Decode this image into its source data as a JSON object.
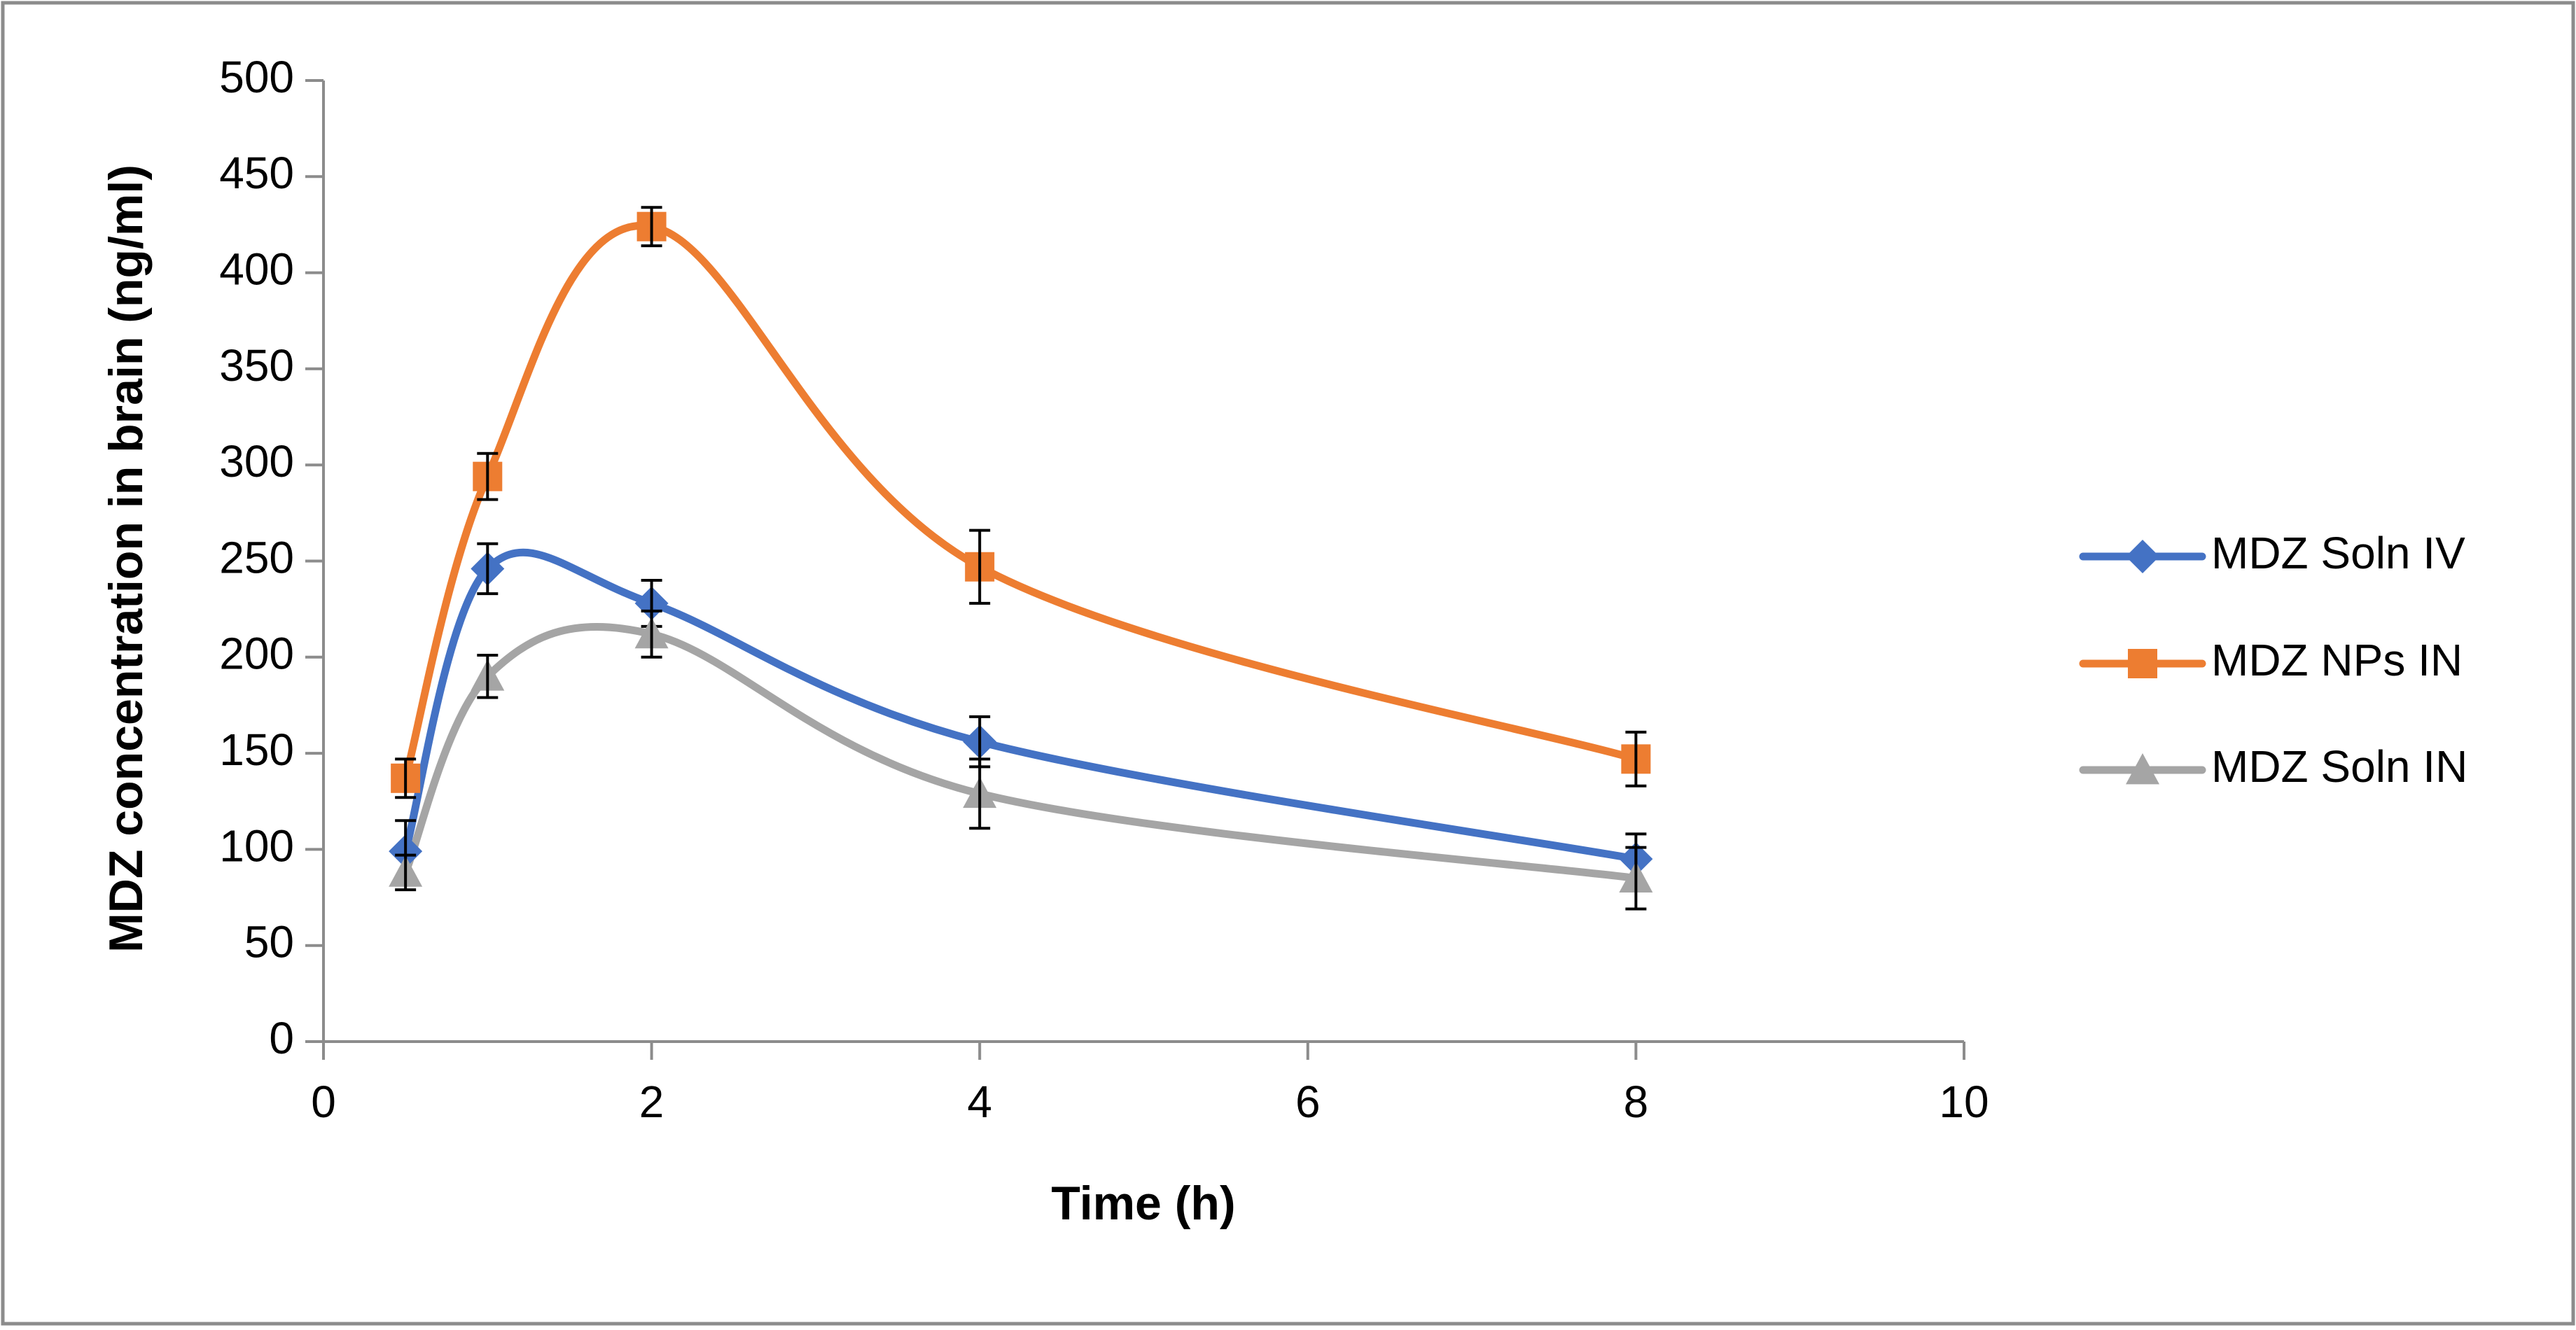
{
  "chart_data": {
    "type": "line",
    "title": "",
    "xlabel": "Time (h)",
    "ylabel": "MDZ concentration in brain (ng/ml)",
    "xlim": [
      0,
      10
    ],
    "ylim": [
      0,
      500
    ],
    "x_ticks": [
      0,
      2,
      4,
      6,
      8,
      10
    ],
    "y_ticks": [
      0,
      50,
      100,
      150,
      200,
      250,
      300,
      350,
      400,
      450,
      500
    ],
    "grid": false,
    "legend_position": "right",
    "x": [
      0.5,
      1,
      2,
      4,
      8
    ],
    "series": [
      {
        "name": "MDZ Soln IV",
        "color": "#4472C4",
        "marker": "diamond",
        "values": [
          99,
          246,
          228,
          156,
          95
        ],
        "errors": [
          16,
          13,
          12,
          13,
          13
        ]
      },
      {
        "name": "MDZ NPs IN",
        "color": "#ED7D31",
        "marker": "square",
        "values": [
          137,
          294,
          424,
          247,
          147
        ],
        "errors": [
          10,
          12,
          10,
          19,
          14
        ]
      },
      {
        "name": "MDZ Soln IN",
        "color": "#A5A5A5",
        "marker": "triangle",
        "values": [
          88,
          190,
          212,
          129,
          85
        ],
        "errors": [
          9,
          11,
          12,
          18,
          16
        ]
      }
    ]
  }
}
